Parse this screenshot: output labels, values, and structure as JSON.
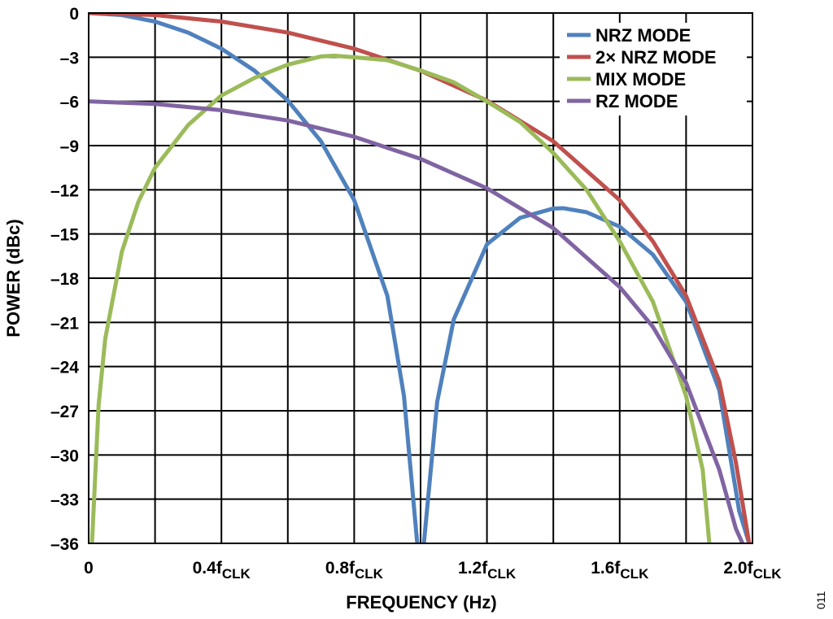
{
  "chart_data": {
    "type": "line",
    "xlabel": "FREQUENCY (Hz)",
    "ylabel": "POWER (dBc)",
    "xlim": [
      0,
      2.0
    ],
    "ylim": [
      -36,
      0
    ],
    "grid": true,
    "legend_position": "top-right",
    "x_ticks": [
      {
        "value": 0,
        "main": "0",
        "sub": ""
      },
      {
        "value": 0.4,
        "main": "0.4f",
        "sub": "CLK"
      },
      {
        "value": 0.8,
        "main": "0.8f",
        "sub": "CLK"
      },
      {
        "value": 1.2,
        "main": "1.2f",
        "sub": "CLK"
      },
      {
        "value": 1.6,
        "main": "1.6f",
        "sub": "CLK"
      },
      {
        "value": 2.0,
        "main": "2.0f",
        "sub": "CLK"
      }
    ],
    "x_grid": [
      0.2,
      0.4,
      0.6,
      0.8,
      1.0,
      1.2,
      1.4,
      1.6,
      1.8
    ],
    "y_ticks": [
      {
        "value": 0,
        "label": "0"
      },
      {
        "value": -3,
        "label": "–3"
      },
      {
        "value": -6,
        "label": "–6"
      },
      {
        "value": -9,
        "label": "–9"
      },
      {
        "value": -12,
        "label": "–12"
      },
      {
        "value": -15,
        "label": "–15"
      },
      {
        "value": -18,
        "label": "–18"
      },
      {
        "value": -21,
        "label": "–21"
      },
      {
        "value": -24,
        "label": "–24"
      },
      {
        "value": -27,
        "label": "–27"
      },
      {
        "value": -30,
        "label": "–30"
      },
      {
        "value": -33,
        "label": "–33"
      },
      {
        "value": -36,
        "label": "–36"
      }
    ],
    "series": [
      {
        "name": "NRZ MODE",
        "color": "#4f81bd",
        "x": [
          0,
          0.1,
          0.2,
          0.3,
          0.4,
          0.5,
          0.6,
          0.7,
          0.8,
          0.9,
          0.95,
          0.99,
          1.0,
          1.01,
          1.05,
          1.1,
          1.2,
          1.3,
          1.4,
          1.43,
          1.5,
          1.6,
          1.7,
          1.8,
          1.9,
          1.96,
          1.99
        ],
        "y": [
          0,
          -0.14,
          -0.58,
          -1.33,
          -2.42,
          -3.92,
          -5.94,
          -8.71,
          -12.7,
          -19.2,
          -26.0,
          -36,
          -40,
          -36,
          -26.4,
          -20.8,
          -15.7,
          -13.9,
          -13.27,
          -13.25,
          -13.52,
          -14.5,
          -16.4,
          -19.6,
          -25.6,
          -33.8,
          -36
        ]
      },
      {
        "name": "2× NRZ MODE",
        "color": "#c0504d",
        "x": [
          0,
          0.2,
          0.4,
          0.6,
          0.8,
          1.0,
          1.2,
          1.4,
          1.6,
          1.7,
          1.8,
          1.9,
          1.95,
          1.99
        ],
        "y": [
          0,
          -0.14,
          -0.58,
          -1.33,
          -2.42,
          -3.92,
          -5.94,
          -8.71,
          -12.7,
          -15.5,
          -19.2,
          -25.0,
          -30.5,
          -36
        ]
      },
      {
        "name": "MIX MODE",
        "color": "#9bbb59",
        "x": [
          0.01,
          0.03,
          0.05,
          0.1,
          0.15,
          0.2,
          0.3,
          0.4,
          0.5,
          0.6,
          0.7,
          0.74,
          0.8,
          0.9,
          1.0,
          1.1,
          1.2,
          1.3,
          1.4,
          1.5,
          1.6,
          1.7,
          1.8,
          1.85,
          1.87
        ],
        "y": [
          -36,
          -26.6,
          -22.1,
          -16.2,
          -12.8,
          -10.5,
          -7.6,
          -5.6,
          -4.4,
          -3.5,
          -2.95,
          -2.9,
          -3.0,
          -3.2,
          -3.9,
          -4.7,
          -6.0,
          -7.4,
          -9.5,
          -12.0,
          -15.5,
          -19.6,
          -26.0,
          -31.0,
          -36
        ]
      },
      {
        "name": "RZ MODE",
        "color": "#8064a2",
        "x": [
          0,
          0.2,
          0.4,
          0.6,
          0.8,
          1.0,
          1.2,
          1.4,
          1.6,
          1.7,
          1.8,
          1.9,
          1.95,
          1.97
        ],
        "y": [
          -6,
          -6.17,
          -6.6,
          -7.3,
          -8.4,
          -9.9,
          -11.9,
          -14.6,
          -18.6,
          -21.3,
          -25.1,
          -31.0,
          -35.0,
          -36
        ]
      }
    ],
    "figure_number": "011"
  }
}
